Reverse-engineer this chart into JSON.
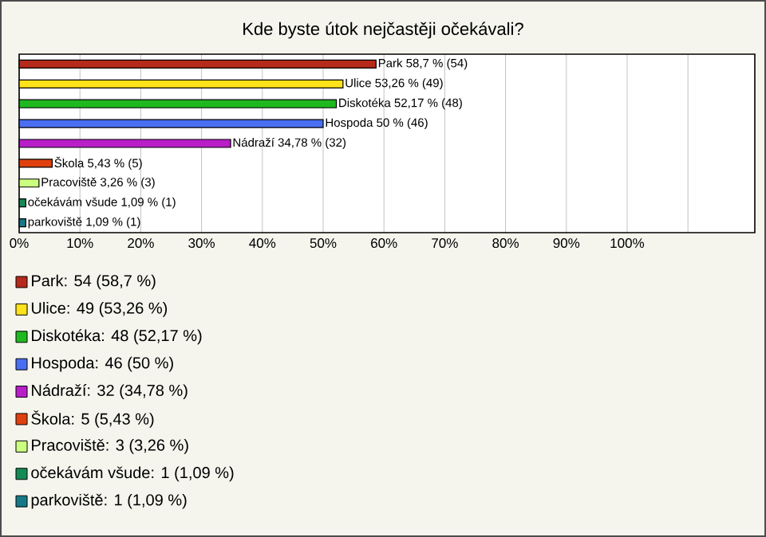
{
  "chart_data": {
    "type": "bar",
    "orientation": "horizontal",
    "title": "Kde byste útok nejčastěji očekávali?",
    "categories": [
      null,
      null,
      null,
      null,
      null,
      null,
      null,
      null,
      null
    ],
    "values": [
      58.7,
      53.26,
      52.17,
      50,
      34.78,
      5.43,
      3.26,
      1.09,
      1.09
    ],
    "colors": [
      "#b52a1a",
      "#ffe21a",
      "#1fb81f",
      "#4a6ef2",
      "#b81fc9",
      "#e0400f",
      "#ccff80",
      "#148a55",
      "#167a86"
    ],
    "value_labels": [
      "Park 58,7 % (54)",
      "Ulice 53,26 % (49)",
      "Diskotéka 52,17 % (48)",
      "Hospoda 50 % (46)",
      "Nádraží 34,78 % (32)",
      "Škola 5,43 % (5)",
      "Pracoviště 3,26 % (3)",
      "očekávám všude 1,09 % (1)",
      "parkoviště 1,09 % (1)"
    ],
    "xlim": [
      0,
      121
    ],
    "xticks": [
      {
        "value": 0,
        "label": "0%"
      },
      {
        "value": 10,
        "label": "10%"
      },
      {
        "value": 20,
        "label": "20%"
      },
      {
        "value": 30,
        "label": "30%"
      },
      {
        "value": 40,
        "label": "40%"
      },
      {
        "value": 50,
        "label": "50%"
      },
      {
        "value": 60,
        "label": "60%"
      },
      {
        "value": 70,
        "label": "70%"
      },
      {
        "value": 80,
        "label": "80%"
      },
      {
        "value": 90,
        "label": "90%"
      },
      {
        "value": 100,
        "label": "100%"
      },
      {
        "value": 110,
        "label": null
      }
    ],
    "grid": "x",
    "annotations": [
      "Park: 54 (58,7 %)",
      "Ulice: 49 (53,26 %)",
      "Diskotéka: 48 (52,17 %)",
      "Hospoda: 46 (50 %)",
      "Nádraží: 32 (34,78 %)",
      "Škola: 5 (5,43 %)",
      "Pracoviště: 3 (3,26 %)",
      "očekávám všude: 1 (1,09 %)",
      "parkoviště: 1 (1,09 %)"
    ]
  }
}
